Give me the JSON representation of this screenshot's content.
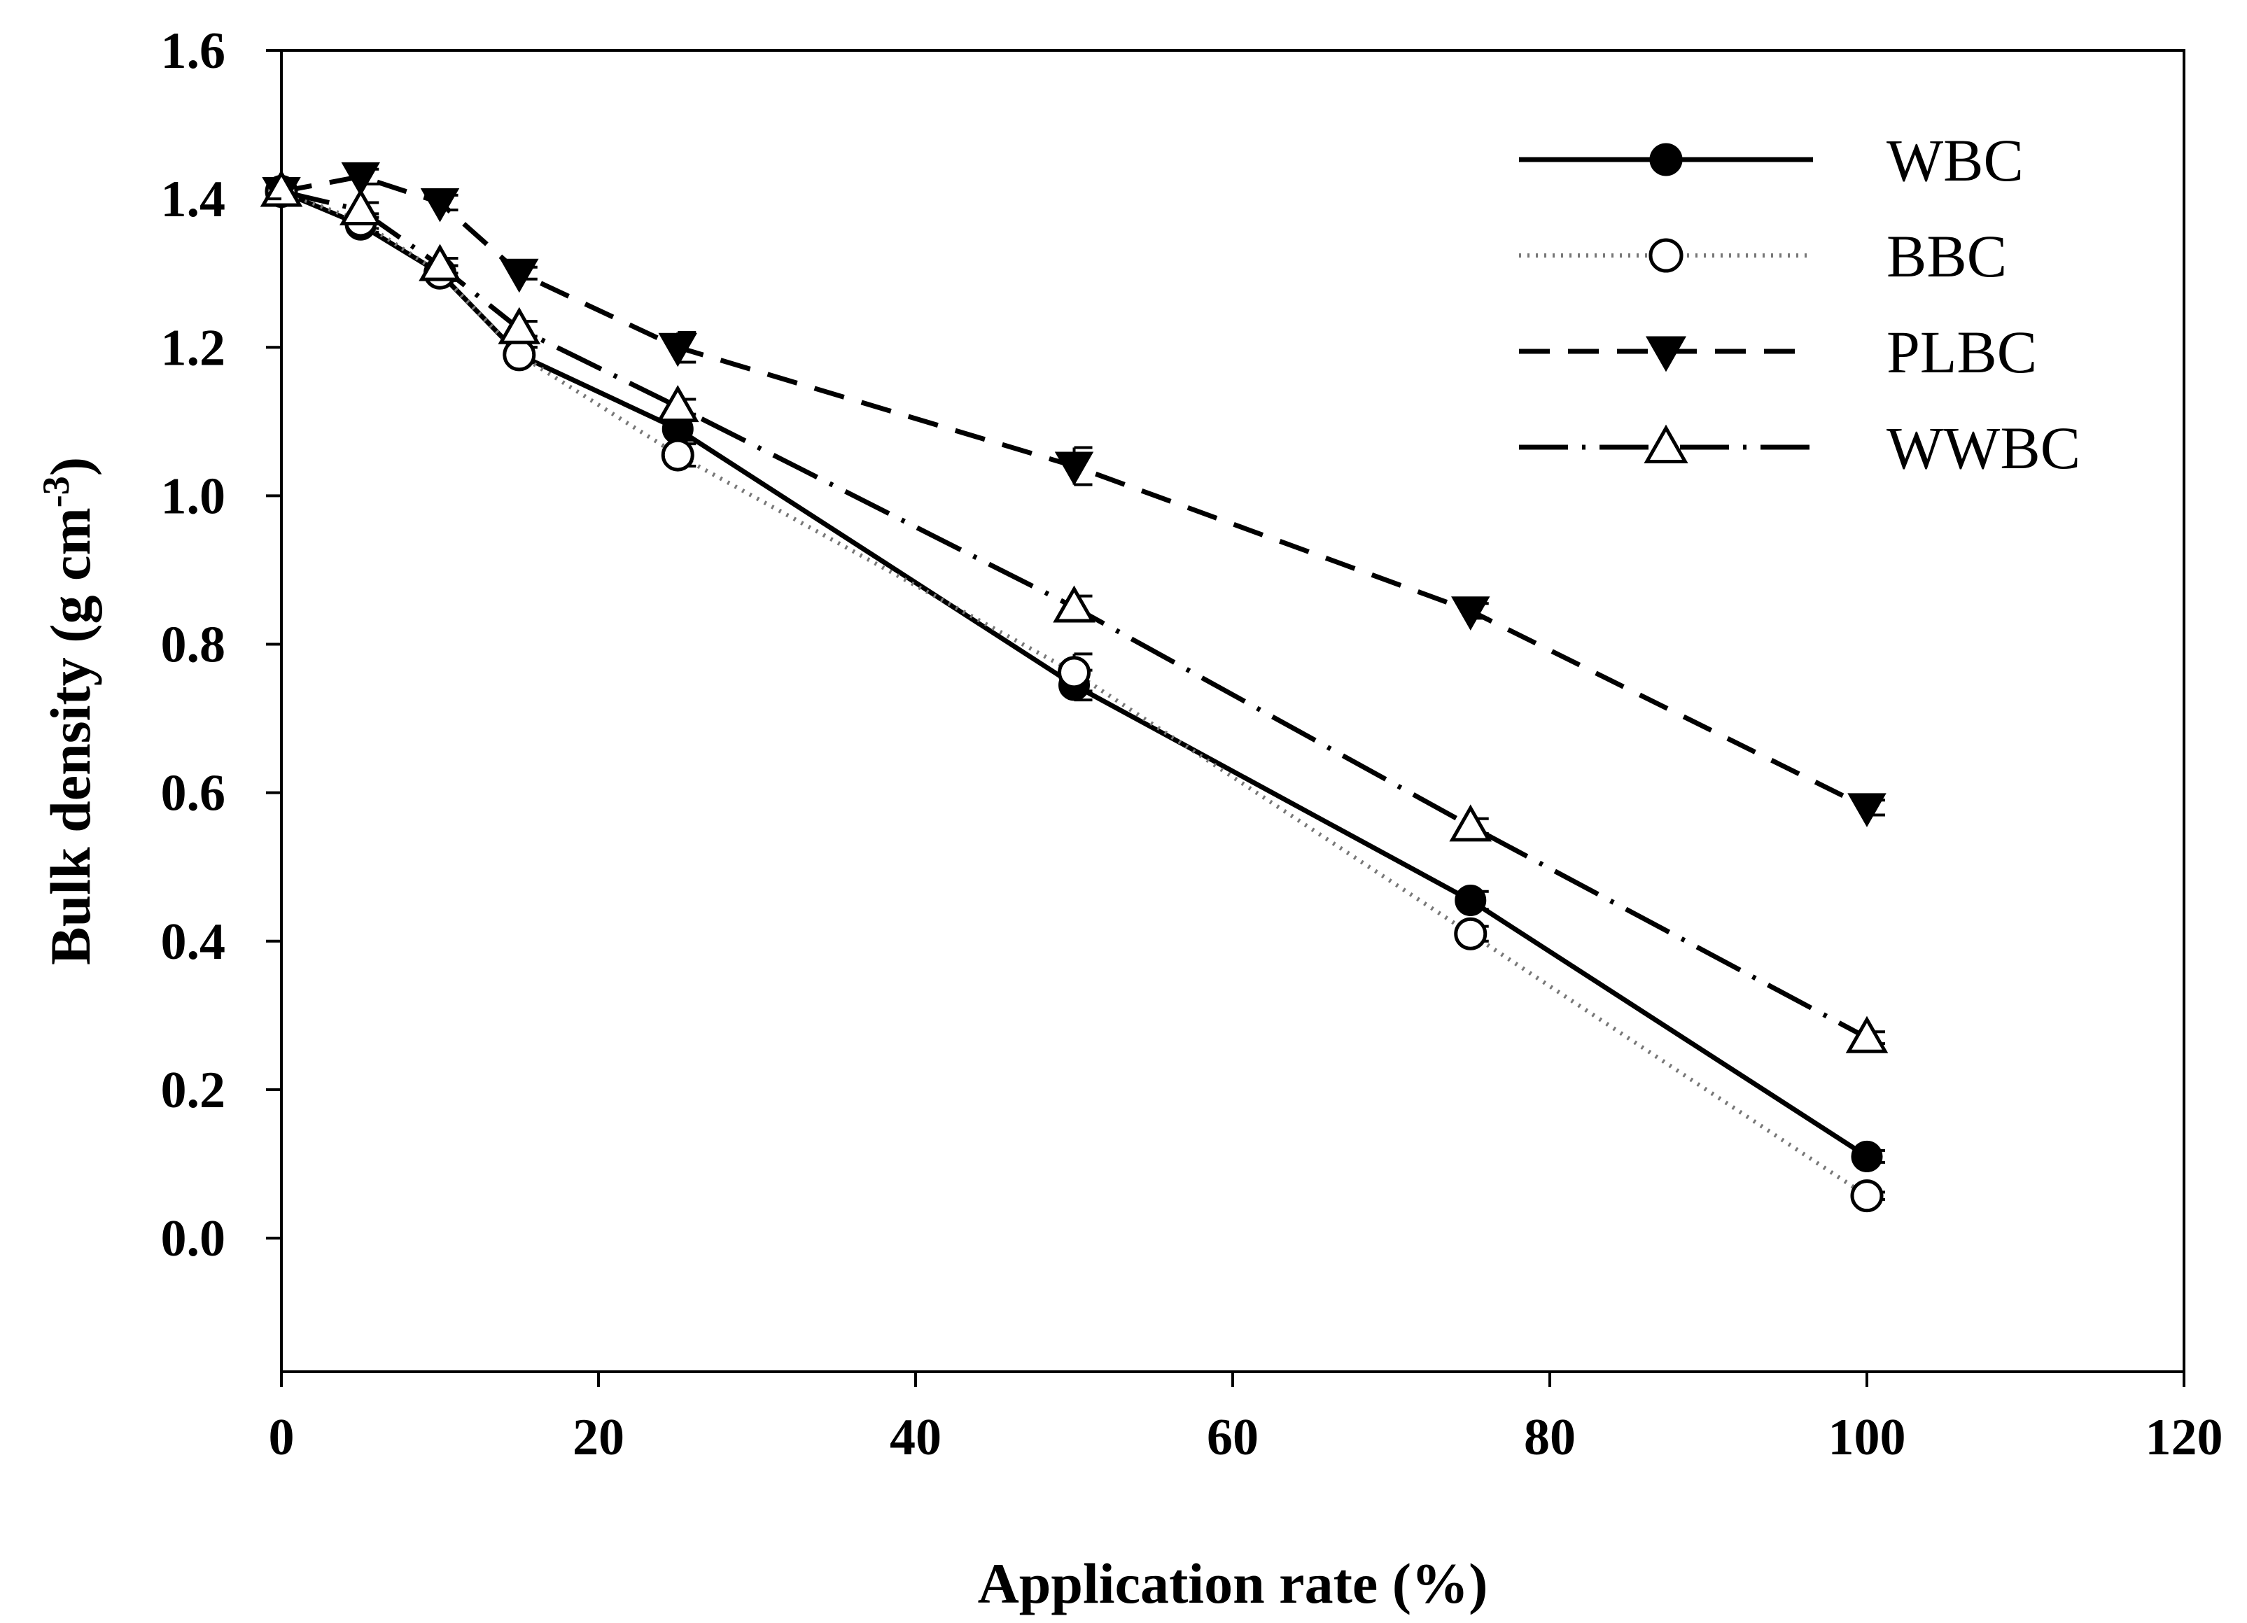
{
  "chart_data": {
    "type": "line",
    "title": "",
    "xlabel": "Application rate (%)",
    "ylabel": {
      "main": "Bulk density (g cm",
      "superscript": "-3",
      "close": ")"
    },
    "xlim": [
      0,
      120
    ],
    "ylim": [
      -0.18,
      1.6
    ],
    "xticks": [
      0,
      20,
      40,
      60,
      80,
      100,
      120
    ],
    "xtick_labels": [
      "0",
      "20",
      "40",
      "60",
      "80",
      "100",
      "120"
    ],
    "yticks": [
      0.0,
      0.2,
      0.4,
      0.6,
      0.8,
      1.0,
      1.2,
      1.4,
      1.6
    ],
    "ytick_labels": [
      "0.0",
      "0.2",
      "0.4",
      "0.6",
      "0.8",
      "1.0",
      "1.2",
      "1.4",
      "1.6"
    ],
    "grid": false,
    "legend_position": "top-right",
    "x": [
      0,
      5,
      10,
      15,
      25,
      50,
      75,
      100
    ],
    "series": [
      {
        "name": "WBC",
        "values": [
          1.41,
          1.365,
          1.3,
          1.19,
          1.09,
          0.745,
          0.455,
          0.11
        ],
        "errors": [
          0.005,
          0.01,
          0.01,
          0.01,
          0.015,
          0.02,
          0.012,
          0.008
        ],
        "marker": "filled-circle",
        "line": "solid",
        "color": "#000000"
      },
      {
        "name": "BBC",
        "values": [
          1.41,
          1.37,
          1.3,
          1.19,
          1.055,
          0.762,
          0.41,
          0.057
        ],
        "errors": [
          0.005,
          0.01,
          0.01,
          0.01,
          0.015,
          0.025,
          0.01,
          0.005
        ],
        "marker": "open-circle",
        "line": "dotted",
        "color": "#000000"
      },
      {
        "name": "PLBC",
        "values": [
          1.41,
          1.43,
          1.395,
          1.3,
          1.2,
          1.04,
          0.845,
          0.58
        ],
        "errors": [
          0.005,
          0.01,
          0.01,
          0.008,
          0.02,
          0.025,
          0.01,
          0.01
        ],
        "marker": "filled-triangle-down",
        "line": "dashed",
        "color": "#000000"
      },
      {
        "name": "WWBC",
        "values": [
          1.41,
          1.385,
          1.31,
          1.225,
          1.12,
          0.85,
          0.555,
          0.27
        ],
        "errors": [
          0.005,
          0.01,
          0.01,
          0.01,
          0.01,
          0.015,
          0.01,
          0.008
        ],
        "marker": "open-triangle-up",
        "line": "dash-dot",
        "color": "#000000"
      }
    ]
  }
}
